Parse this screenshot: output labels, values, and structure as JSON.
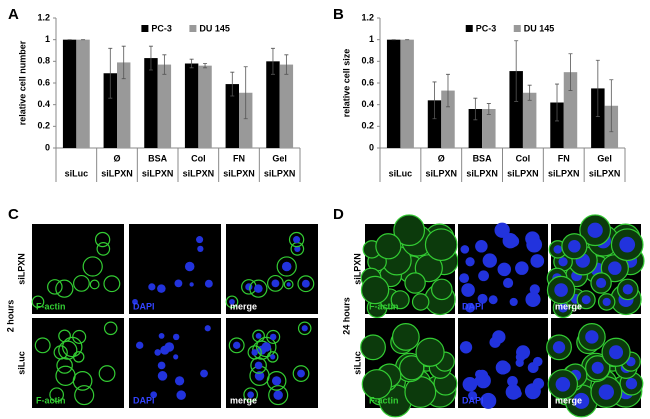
{
  "chart_data": [
    {
      "type": "bar",
      "panel": "A",
      "ylabel": "relative cell number",
      "treatments": [
        null,
        "Ø",
        "BSA",
        "Col",
        "FN",
        "Gel"
      ],
      "categories": [
        "siLuc",
        "siLPXN",
        "siLPXN",
        "siLPXN",
        "siLPXN",
        "siLPXN"
      ],
      "ylim": [
        0,
        1.2
      ],
      "yticks": [
        0,
        0.2,
        0.4,
        0.6,
        0.8,
        1,
        1.2
      ],
      "series": [
        {
          "name": "PC-3",
          "color": "#000000",
          "values": [
            1,
            0.69,
            0.83,
            0.78,
            0.59,
            0.8
          ],
          "errors": [
            0,
            0.23,
            0.11,
            0.04,
            0.11,
            0.12
          ]
        },
        {
          "name": "DU 145",
          "color": "#999999",
          "values": [
            1,
            0.79,
            0.77,
            0.76,
            0.51,
            0.77
          ],
          "errors": [
            0,
            0.15,
            0.09,
            0.02,
            0.24,
            0.09
          ]
        }
      ]
    },
    {
      "type": "bar",
      "panel": "B",
      "ylabel": "relative cell size",
      "treatments": [
        null,
        "Ø",
        "BSA",
        "Col",
        "FN",
        "Gel"
      ],
      "categories": [
        "siLuc",
        "siLPXN",
        "siLPXN",
        "siLPXN",
        "siLPXN",
        "siLPXN"
      ],
      "ylim": [
        0,
        1.2
      ],
      "yticks": [
        0,
        0.2,
        0.4,
        0.6,
        0.8,
        1,
        1.2
      ],
      "series": [
        {
          "name": "PC-3",
          "color": "#000000",
          "values": [
            1,
            0.44,
            0.36,
            0.71,
            0.42,
            0.55
          ],
          "errors": [
            0,
            0.17,
            0.1,
            0.28,
            0.17,
            0.26
          ]
        },
        {
          "name": "DU 145",
          "color": "#999999",
          "values": [
            1,
            0.53,
            0.36,
            0.51,
            0.7,
            0.39
          ],
          "errors": [
            0,
            0.15,
            0.05,
            0.07,
            0.17,
            0.24
          ]
        }
      ]
    }
  ],
  "panels": [
    {
      "letter": "C",
      "time": "2 hours",
      "rows": [
        "siLPXN",
        "siLuc"
      ],
      "channels": [
        "F-actin",
        "DAPI",
        "merge"
      ]
    },
    {
      "letter": "D",
      "time": "24 hours",
      "rows": [
        "siLPXN",
        "siLuc"
      ],
      "channels": [
        "F-actin",
        "DAPI",
        "merge"
      ]
    }
  ]
}
